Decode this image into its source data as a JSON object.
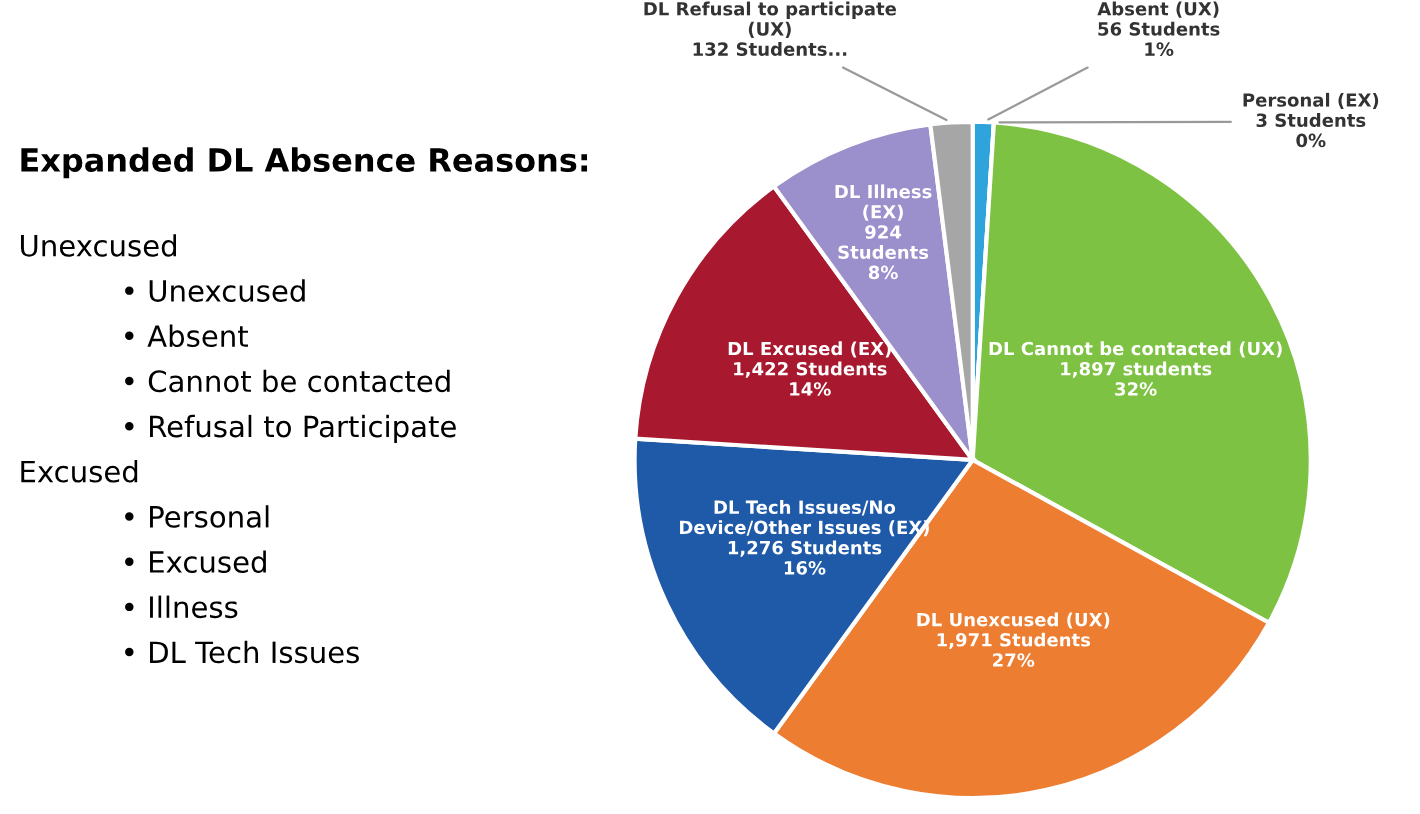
{
  "chart_data": {
    "type": "pie",
    "categories": [
      "Absent (UX)",
      "Personal (EX)",
      "DL Cannot be contacted (UX)",
      "DL Unexcused (UX)",
      "DL Tech Issues/No\nDevice/Other Issues (EX)",
      "DL Excused (EX)",
      "DL Illness\n(EX)",
      "DL Refusal to participate\n(UX)"
    ],
    "values": [
      1,
      0,
      32,
      27,
      16,
      14,
      8,
      2
    ],
    "value_labels": [
      "56 Students\n1%",
      "3 Students\n0%",
      "1,897 students\n32%",
      "1,971 Students\n27%",
      "1,276 Students\n16%",
      "1,422 Students\n14%",
      "924\nStudents\n8%",
      "132 Students..."
    ],
    "colors": [
      "#2ea3dc",
      "#a9c4e6",
      "#7dc242",
      "#ed7d31",
      "#1f5aa8",
      "#a8182e",
      "#9b8fcc",
      "#a6a6a6"
    ],
    "annotations": [
      "Expanded DL Absence Reasons:",
      "Unexcused",
      "• Unexcused",
      "• Absent",
      "• Cannot be contacted",
      "• Refusal to Participate",
      "Excused",
      "• Personal",
      "• Excused",
      "• Illness",
      "• DL Tech Issues"
    ]
  }
}
